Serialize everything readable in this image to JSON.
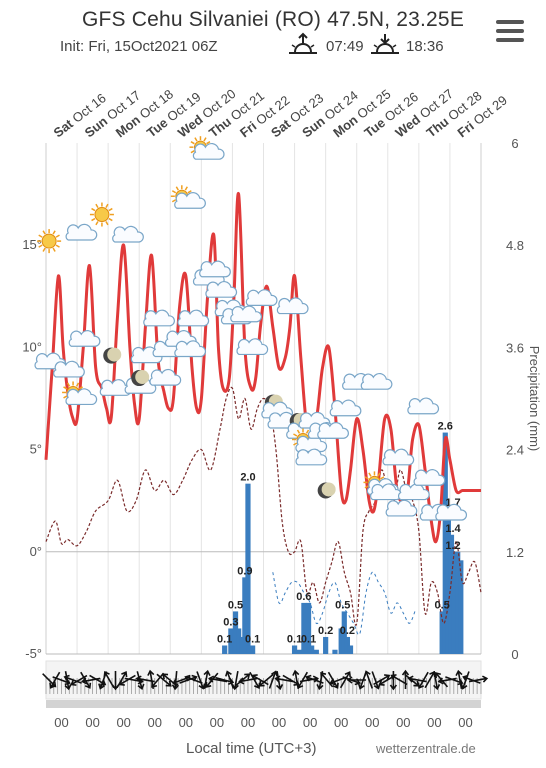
{
  "header": {
    "title": "GFS Cehu Silvaniei (RO) 47.5N, 23.25E",
    "init": "Init: Fri, 15Oct2021 06Z",
    "sunrise_icon": "sunrise-icon",
    "sunrise": "07:49",
    "sunset_icon": "sunset-icon",
    "sunset": "18:36",
    "menu_icon": "hamburger-menu-icon"
  },
  "footer": {
    "xlabel": "Local time (UTC+3)",
    "brand": "wetterzentrale.de",
    "tick_label": "00"
  },
  "chart_data": {
    "type": "line",
    "days": [
      {
        "dn": "Sat",
        "date": "Oct 16"
      },
      {
        "dn": "Sun",
        "date": "Oct 17"
      },
      {
        "dn": "Mon",
        "date": "Oct 18"
      },
      {
        "dn": "Tue",
        "date": "Oct 19"
      },
      {
        "dn": "Wed",
        "date": "Oct 20"
      },
      {
        "dn": "Thu",
        "date": "Oct 21"
      },
      {
        "dn": "Fri",
        "date": "Oct 22"
      },
      {
        "dn": "Sat",
        "date": "Oct 23"
      },
      {
        "dn": "Sun",
        "date": "Oct 24"
      },
      {
        "dn": "Mon",
        "date": "Oct 25"
      },
      {
        "dn": "Tue",
        "date": "Oct 26"
      },
      {
        "dn": "Wed",
        "date": "Oct 27"
      },
      {
        "dn": "Thu",
        "date": "Oct 28"
      },
      {
        "dn": "Fri",
        "date": "Oct 29"
      }
    ],
    "left_axis": {
      "ticks": [
        {
          "v": 15,
          "label": "15°"
        },
        {
          "v": 10,
          "label": "10°"
        },
        {
          "v": 5,
          "label": "5°"
        },
        {
          "v": 0,
          "label": "0°"
        },
        {
          "v": -5,
          "label": "-5°"
        }
      ],
      "ylim": [
        -5,
        20
      ]
    },
    "right_axis": {
      "ylabel": "Precipitation (mm)",
      "ticks": [
        "6",
        "4.8",
        "3.6",
        "2.4",
        "1.2",
        "0"
      ],
      "ylim": [
        0,
        6
      ]
    },
    "x_range": [
      0,
      14
    ],
    "temperature": {
      "color": "#e03a3a",
      "x": [
        0.0,
        0.2,
        0.4,
        0.55,
        0.7,
        0.85,
        1.0,
        1.2,
        1.4,
        1.6,
        1.8,
        1.95,
        2.1,
        2.3,
        2.5,
        2.7,
        2.85,
        3.0,
        3.2,
        3.4,
        3.6,
        3.8,
        3.95,
        4.1,
        4.3,
        4.5,
        4.7,
        4.85,
        5.0,
        5.2,
        5.4,
        5.55,
        5.7,
        5.9,
        6.05,
        6.2,
        6.4,
        6.6,
        6.75,
        6.9,
        7.1,
        7.3,
        7.5,
        7.7,
        7.85,
        8.0,
        8.2,
        8.4,
        8.6,
        8.75,
        8.9,
        9.1,
        9.3,
        9.5,
        9.65,
        9.8,
        10.0,
        10.2,
        10.4,
        10.55,
        10.7,
        10.9,
        11.1,
        11.3,
        11.5,
        11.65,
        11.8,
        12.0,
        12.2,
        12.4,
        12.55,
        12.7,
        12.85,
        13.0,
        13.2,
        13.4,
        13.6,
        13.8,
        14.0
      ],
      "y": [
        4.5,
        9.0,
        13.5,
        10.0,
        7.8,
        6.6,
        6.5,
        10.0,
        14.0,
        9.0,
        8.0,
        7.0,
        6.6,
        11.5,
        15.0,
        10.0,
        7.2,
        6.5,
        11.0,
        14.5,
        9.5,
        7.8,
        7.0,
        7.5,
        12.0,
        13.5,
        9.0,
        7.0,
        7.5,
        12.5,
        15.5,
        10.0,
        8.0,
        8.5,
        12.5,
        17.5,
        10.0,
        8.0,
        8.5,
        11.0,
        13.0,
        11.0,
        9.0,
        9.5,
        11.0,
        13.5,
        9.5,
        6.0,
        5.5,
        7.0,
        9.0,
        10.0,
        7.0,
        3.0,
        2.5,
        4.0,
        6.5,
        5.0,
        2.5,
        2.0,
        3.5,
        6.5,
        6.0,
        3.0,
        2.5,
        3.2,
        5.5,
        6.2,
        4.0,
        1.5,
        0.5,
        2.0,
        5.5,
        4.5,
        3.0,
        3.0,
        3.0,
        3.0,
        3.0
      ]
    },
    "dewpoint": {
      "color": "#7a2b2b",
      "x": [
        0.0,
        0.3,
        0.5,
        0.7,
        1.0,
        1.3,
        1.6,
        2.0,
        2.3,
        2.6,
        2.9,
        3.2,
        3.5,
        3.8,
        4.1,
        4.4,
        4.7,
        5.0,
        5.3,
        5.6,
        5.8,
        6.0,
        6.2,
        6.4,
        6.6,
        6.8,
        7.0,
        7.2,
        7.4,
        7.6,
        7.8,
        8.0,
        8.2,
        8.4,
        8.6,
        8.8,
        9.0,
        9.2,
        9.4,
        9.6,
        9.8,
        10.0,
        10.2,
        10.4,
        10.6,
        10.8,
        11.0,
        11.2,
        11.4,
        11.6,
        11.8,
        12.0,
        12.2,
        12.4,
        12.6,
        12.8,
        13.0,
        13.2,
        13.4,
        13.6,
        13.8,
        14.0
      ],
      "y": [
        0.5,
        1.5,
        0.4,
        0.6,
        0.3,
        1.0,
        2.0,
        2.5,
        3.5,
        2.0,
        2.5,
        4.0,
        3.0,
        3.5,
        2.8,
        3.5,
        4.5,
        5.0,
        4.0,
        6.0,
        7.5,
        8.0,
        6.5,
        7.5,
        6.0,
        7.0,
        7.5,
        7.0,
        5.0,
        1.5,
        0.0,
        0.0,
        0.5,
        -2.0,
        -1.5,
        -2.5,
        -1.5,
        -0.5,
        0.5,
        -1.0,
        -2.0,
        -3.5,
        1.0,
        2.0,
        2.5,
        4.0,
        3.0,
        2.5,
        4.0,
        3.0,
        2.5,
        1.0,
        -3.0,
        -1.5,
        -2.0,
        -3.5,
        -2.0,
        0.5,
        -1.5,
        -1.0,
        -0.5,
        -2.0
      ]
    },
    "precipitation": {
      "color": "#3a7dbf",
      "x": [
        5.75,
        5.95,
        6.1,
        6.2,
        6.3,
        6.4,
        6.5,
        6.55,
        6.65,
        8.0,
        8.15,
        8.3,
        8.45,
        8.55,
        8.7,
        9.0,
        9.3,
        9.5,
        9.6,
        9.7,
        9.8,
        12.75,
        12.85,
        12.95,
        13.05,
        13.15,
        13.25,
        13.35
      ],
      "values": [
        0.1,
        0.3,
        0.5,
        0.3,
        0.2,
        0.9,
        2.0,
        0.1,
        0.1,
        0.1,
        0.05,
        0.6,
        0.6,
        0.1,
        0.05,
        0.2,
        0.05,
        0.3,
        0.5,
        0.2,
        0.1,
        0.5,
        2.6,
        1.7,
        1.4,
        1.2,
        1.2,
        1.1
      ]
    },
    "precip_labels": [
      {
        "x": 5.75,
        "v": 0.1,
        "text": "0.1"
      },
      {
        "x": 6.1,
        "v": 0.5,
        "text": "0.5"
      },
      {
        "x": 5.95,
        "v": 0.3,
        "text": "0.3"
      },
      {
        "x": 6.4,
        "v": 0.9,
        "text": "0.9"
      },
      {
        "x": 6.5,
        "v": 2.0,
        "text": "2.0"
      },
      {
        "x": 6.65,
        "v": 0.1,
        "text": "0.1"
      },
      {
        "x": 8.0,
        "v": 0.1,
        "text": "0.1"
      },
      {
        "x": 8.3,
        "v": 0.6,
        "text": "0.6"
      },
      {
        "x": 8.45,
        "v": 0.1,
        "text": "0.1"
      },
      {
        "x": 9.0,
        "v": 0.2,
        "text": "0.2"
      },
      {
        "x": 9.55,
        "v": 0.5,
        "text": "0.5"
      },
      {
        "x": 9.7,
        "v": 0.2,
        "text": "0.2"
      },
      {
        "x": 12.75,
        "v": 0.5,
        "text": "0.5"
      },
      {
        "x": 12.85,
        "v": 2.6,
        "text": "2.6"
      },
      {
        "x": 13.1,
        "v": 1.7,
        "text": "1.7"
      },
      {
        "x": 13.1,
        "v": 1.4,
        "text": "1.4"
      },
      {
        "x": 13.1,
        "v": 1.2,
        "text": "1.2"
      }
    ],
    "snow_limit": {
      "color": "#3a7dbf",
      "x": [
        7.3,
        7.5,
        7.7,
        7.9,
        8.1,
        8.3,
        8.5,
        8.7,
        8.9,
        9.1,
        9.3,
        9.5,
        9.7,
        9.9,
        10.1,
        10.3,
        10.5,
        10.7,
        10.9,
        11.1,
        11.3,
        11.5,
        11.7,
        11.9
      ],
      "y": [
        -1.0,
        -2.5,
        -2.0,
        -1.5,
        -1.5,
        -2.0,
        -2.5,
        -3.5,
        -3.0,
        -2.0,
        -1.5,
        -2.5,
        -3.0,
        -3.5,
        -4.0,
        -2.0,
        -1.0,
        -1.5,
        -2.0,
        -3.0,
        -2.5,
        -3.0,
        -3.5,
        -2.8
      ]
    },
    "weather_icons": [
      {
        "x": 0.1,
        "y": 15.2,
        "icon": "sun-icon"
      },
      {
        "x": 0.1,
        "y": 9.2,
        "icon": "cloud-icon"
      },
      {
        "x": 0.7,
        "y": 8.8,
        "icon": "cloud-icon"
      },
      {
        "x": 1.1,
        "y": 15.5,
        "icon": "cloud-icon"
      },
      {
        "x": 1.0,
        "y": 7.6,
        "icon": "partly-sunny-icon"
      },
      {
        "x": 1.2,
        "y": 10.3,
        "icon": "cloud-icon"
      },
      {
        "x": 1.8,
        "y": 16.5,
        "icon": "sun-icon"
      },
      {
        "x": 2.1,
        "y": 9.6,
        "icon": "moon-icon"
      },
      {
        "x": 2.2,
        "y": 7.9,
        "icon": "cloud-icon"
      },
      {
        "x": 2.6,
        "y": 15.4,
        "icon": "cloud-icon"
      },
      {
        "x": 3.0,
        "y": 8.0,
        "icon": "cloud-icon"
      },
      {
        "x": 3.0,
        "y": 8.5,
        "icon": "moon-icon"
      },
      {
        "x": 3.2,
        "y": 9.5,
        "icon": "cloud-icon"
      },
      {
        "x": 3.6,
        "y": 11.3,
        "icon": "cloud-icon"
      },
      {
        "x": 3.8,
        "y": 8.4,
        "icon": "cloud-icon"
      },
      {
        "x": 3.9,
        "y": 9.8,
        "icon": "cloud-icon"
      },
      {
        "x": 4.3,
        "y": 10.3,
        "icon": "cloud-icon"
      },
      {
        "x": 4.5,
        "y": 17.2,
        "icon": "partly-sunny-icon"
      },
      {
        "x": 4.7,
        "y": 11.3,
        "icon": "cloud-icon"
      },
      {
        "x": 4.6,
        "y": 9.8,
        "icon": "cloud-icon"
      },
      {
        "x": 5.1,
        "y": 19.6,
        "icon": "partly-sunny-icon"
      },
      {
        "x": 5.2,
        "y": 13.3,
        "icon": "cloud-icon"
      },
      {
        "x": 5.4,
        "y": 13.7,
        "icon": "cloud-icon"
      },
      {
        "x": 5.6,
        "y": 12.7,
        "icon": "cloud-icon"
      },
      {
        "x": 5.9,
        "y": 11.8,
        "icon": "cloud-icon"
      },
      {
        "x": 6.1,
        "y": 11.4,
        "icon": "cloud-icon"
      },
      {
        "x": 6.4,
        "y": 11.5,
        "icon": "cloud-icon"
      },
      {
        "x": 6.9,
        "y": 12.3,
        "icon": "cloud-icon"
      },
      {
        "x": 6.6,
        "y": 9.9,
        "icon": "cloud-icon"
      },
      {
        "x": 7.3,
        "y": 7.3,
        "icon": "moon-icon"
      },
      {
        "x": 7.4,
        "y": 6.8,
        "icon": "cloud-icon"
      },
      {
        "x": 7.9,
        "y": 11.9,
        "icon": "cloud-icon"
      },
      {
        "x": 7.6,
        "y": 6.3,
        "icon": "cloud-icon"
      },
      {
        "x": 8.1,
        "y": 6.4,
        "icon": "moon-icon"
      },
      {
        "x": 8.2,
        "y": 5.8,
        "icon": "cloud-icon"
      },
      {
        "x": 8.4,
        "y": 5.3,
        "icon": "partly-sunny-icon"
      },
      {
        "x": 8.5,
        "y": 4.5,
        "icon": "cloud-icon"
      },
      {
        "x": 8.6,
        "y": 6.3,
        "icon": "cloud-icon"
      },
      {
        "x": 8.9,
        "y": 5.8,
        "icon": "cloud-icon"
      },
      {
        "x": 9.2,
        "y": 5.8,
        "icon": "cloud-icon"
      },
      {
        "x": 9.6,
        "y": 6.9,
        "icon": "cloud-icon"
      },
      {
        "x": 9.0,
        "y": 3.0,
        "icon": "moon-icon"
      },
      {
        "x": 10.0,
        "y": 8.2,
        "icon": "cloud-icon"
      },
      {
        "x": 10.6,
        "y": 8.2,
        "icon": "cloud-icon"
      },
      {
        "x": 10.7,
        "y": 3.2,
        "icon": "partly-sunny-icon"
      },
      {
        "x": 10.9,
        "y": 2.8,
        "icon": "cloud-icon"
      },
      {
        "x": 11.4,
        "y": 2.0,
        "icon": "cloud-icon"
      },
      {
        "x": 11.3,
        "y": 4.5,
        "icon": "cloud-icon"
      },
      {
        "x": 11.8,
        "y": 2.8,
        "icon": "cloud-icon"
      },
      {
        "x": 12.1,
        "y": 7.0,
        "icon": "cloud-icon"
      },
      {
        "x": 12.3,
        "y": 3.5,
        "icon": "cloud-icon"
      },
      {
        "x": 12.5,
        "y": 1.8,
        "icon": "cloud-icon"
      },
      {
        "x": 13.0,
        "y": 1.8,
        "icon": "cloud-icon"
      }
    ],
    "wind_dirs": [
      45,
      120,
      20,
      80,
      200,
      150,
      60,
      170,
      30,
      110,
      240,
      90,
      300,
      150,
      10,
      75,
      190,
      260,
      130,
      40,
      220,
      95,
      160,
      340,
      200,
      70,
      280,
      130,
      190,
      15,
      250,
      100,
      320,
      170,
      60,
      210,
      140,
      290,
      80,
      190,
      30,
      260,
      120,
      350,
      200,
      100,
      230,
      60,
      160,
      300,
      20,
      180,
      110,
      250,
      70,
      330,
      150,
      90,
      210,
      270,
      40,
      190,
      120,
      300,
      80,
      230,
      170,
      20,
      260,
      110,
      200,
      350
    ]
  }
}
